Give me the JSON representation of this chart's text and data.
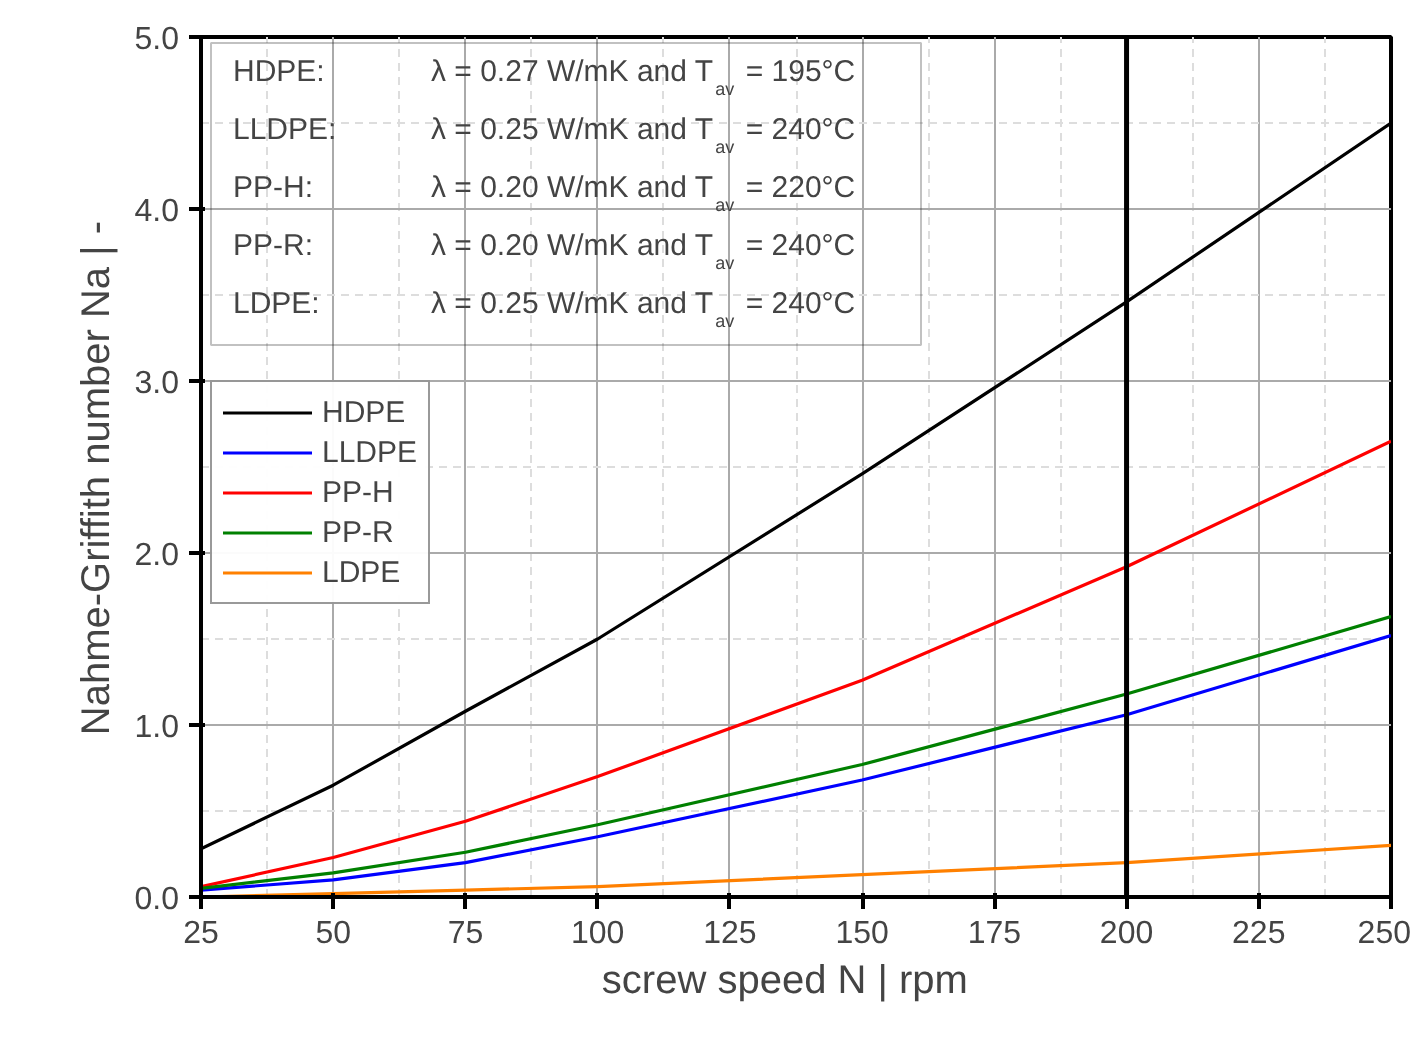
{
  "chart_data": {
    "type": "line",
    "xlabel": "screw speed N  |  rpm",
    "ylabel": "Nahme-Griffith number Na  |  -",
    "x": [
      25,
      50,
      75,
      100,
      150,
      200,
      250
    ],
    "series": [
      {
        "name": "HDPE",
        "color": "#000000",
        "values": [
          0.28,
          0.65,
          1.08,
          1.5,
          2.46,
          3.46,
          4.5
        ]
      },
      {
        "name": "LLDPE",
        "color": "#0000ff",
        "values": [
          0.04,
          0.1,
          0.2,
          0.35,
          0.68,
          1.06,
          1.52
        ]
      },
      {
        "name": "PP-H",
        "color": "#ff0000",
        "values": [
          0.06,
          0.23,
          0.44,
          0.7,
          1.26,
          1.92,
          2.65
        ]
      },
      {
        "name": "PP-R",
        "color": "#008000",
        "values": [
          0.05,
          0.14,
          0.26,
          0.42,
          0.77,
          1.18,
          1.63
        ]
      },
      {
        "name": "LDPE",
        "color": "#ff8000",
        "values": [
          0.0,
          0.02,
          0.04,
          0.06,
          0.13,
          0.2,
          0.3
        ]
      }
    ],
    "xlim": [
      25,
      250
    ],
    "xticks": [
      25,
      50,
      75,
      100,
      125,
      150,
      175,
      200,
      225,
      250
    ],
    "ylim": [
      0,
      5
    ],
    "yticks": [
      {
        "value": 0,
        "label": "0.0"
      },
      {
        "value": 1,
        "label": "1.0"
      },
      {
        "value": 2,
        "label": "2.0"
      },
      {
        "value": 3,
        "label": "3.0"
      },
      {
        "value": 4,
        "label": "4.0"
      },
      {
        "value": 5,
        "label": "5.0"
      }
    ],
    "ref_lines": [
      {
        "axis": "x",
        "value": 200,
        "color": "#000000"
      }
    ],
    "annotations": [
      "HDPE: λ = 0.27 W/mK and T$_{av}$ = 195°C",
      "LLDPE: λ = 0.25 W/mK and T$_{av}$ = 240°C",
      "PP-H: λ = 0.20 W/mK and T$_{av}$ = 220°C",
      "PP-R: λ = 0.20 W/mK and T$_{av}$ = 240°C",
      "LDPE: λ = 0.25 W/mK and T$_{av}$ = 240°C"
    ],
    "grid": true,
    "legend": "left",
    "marker": "none",
    "line_style": "solid"
  }
}
